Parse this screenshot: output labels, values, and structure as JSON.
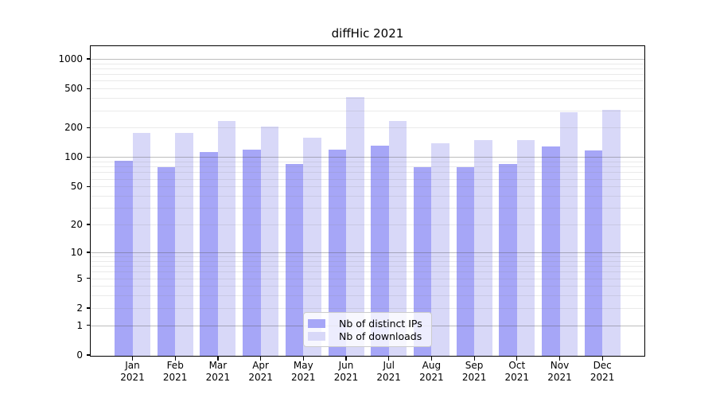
{
  "chart_data": {
    "type": "bar",
    "title": "diffHic 2021",
    "categories": [
      "Jan 2021",
      "Feb 2021",
      "Mar 2021",
      "Apr 2021",
      "May 2021",
      "Jun 2021",
      "Jul 2021",
      "Aug 2021",
      "Sep 2021",
      "Oct 2021",
      "Nov 2021",
      "Dec 2021"
    ],
    "series": [
      {
        "name": "Nb of distinct IPs",
        "color": "#a6a6f7",
        "values": [
          92,
          79,
          113,
          120,
          85,
          120,
          131,
          79,
          79,
          85,
          128,
          117
        ]
      },
      {
        "name": "Nb of downloads",
        "color": "#d8d8f8",
        "values": [
          178,
          178,
          234,
          207,
          159,
          412,
          235,
          139,
          149,
          150,
          285,
          306
        ]
      }
    ],
    "y_axis": {
      "scale": "log1p",
      "tick_labels": [
        0,
        1,
        2,
        5,
        10,
        20,
        50,
        100,
        200,
        500,
        1000
      ],
      "major_gridlines": [
        1,
        10,
        100,
        1000
      ],
      "minor_gridline_subs": [
        2,
        3,
        4,
        5,
        6,
        7,
        8,
        9
      ],
      "range": [
        0,
        1300
      ],
      "grid": true
    },
    "legend_position": "lower center",
    "colors": {
      "bar_distinct_ips": "#a6a6f7",
      "bar_downloads": "#d8d8f8",
      "major_grid": "rgba(90,90,90,0.40)",
      "minor_grid": "rgba(130,130,130,0.17)",
      "axis": "#000000",
      "legend_border": "#cccccc"
    }
  }
}
